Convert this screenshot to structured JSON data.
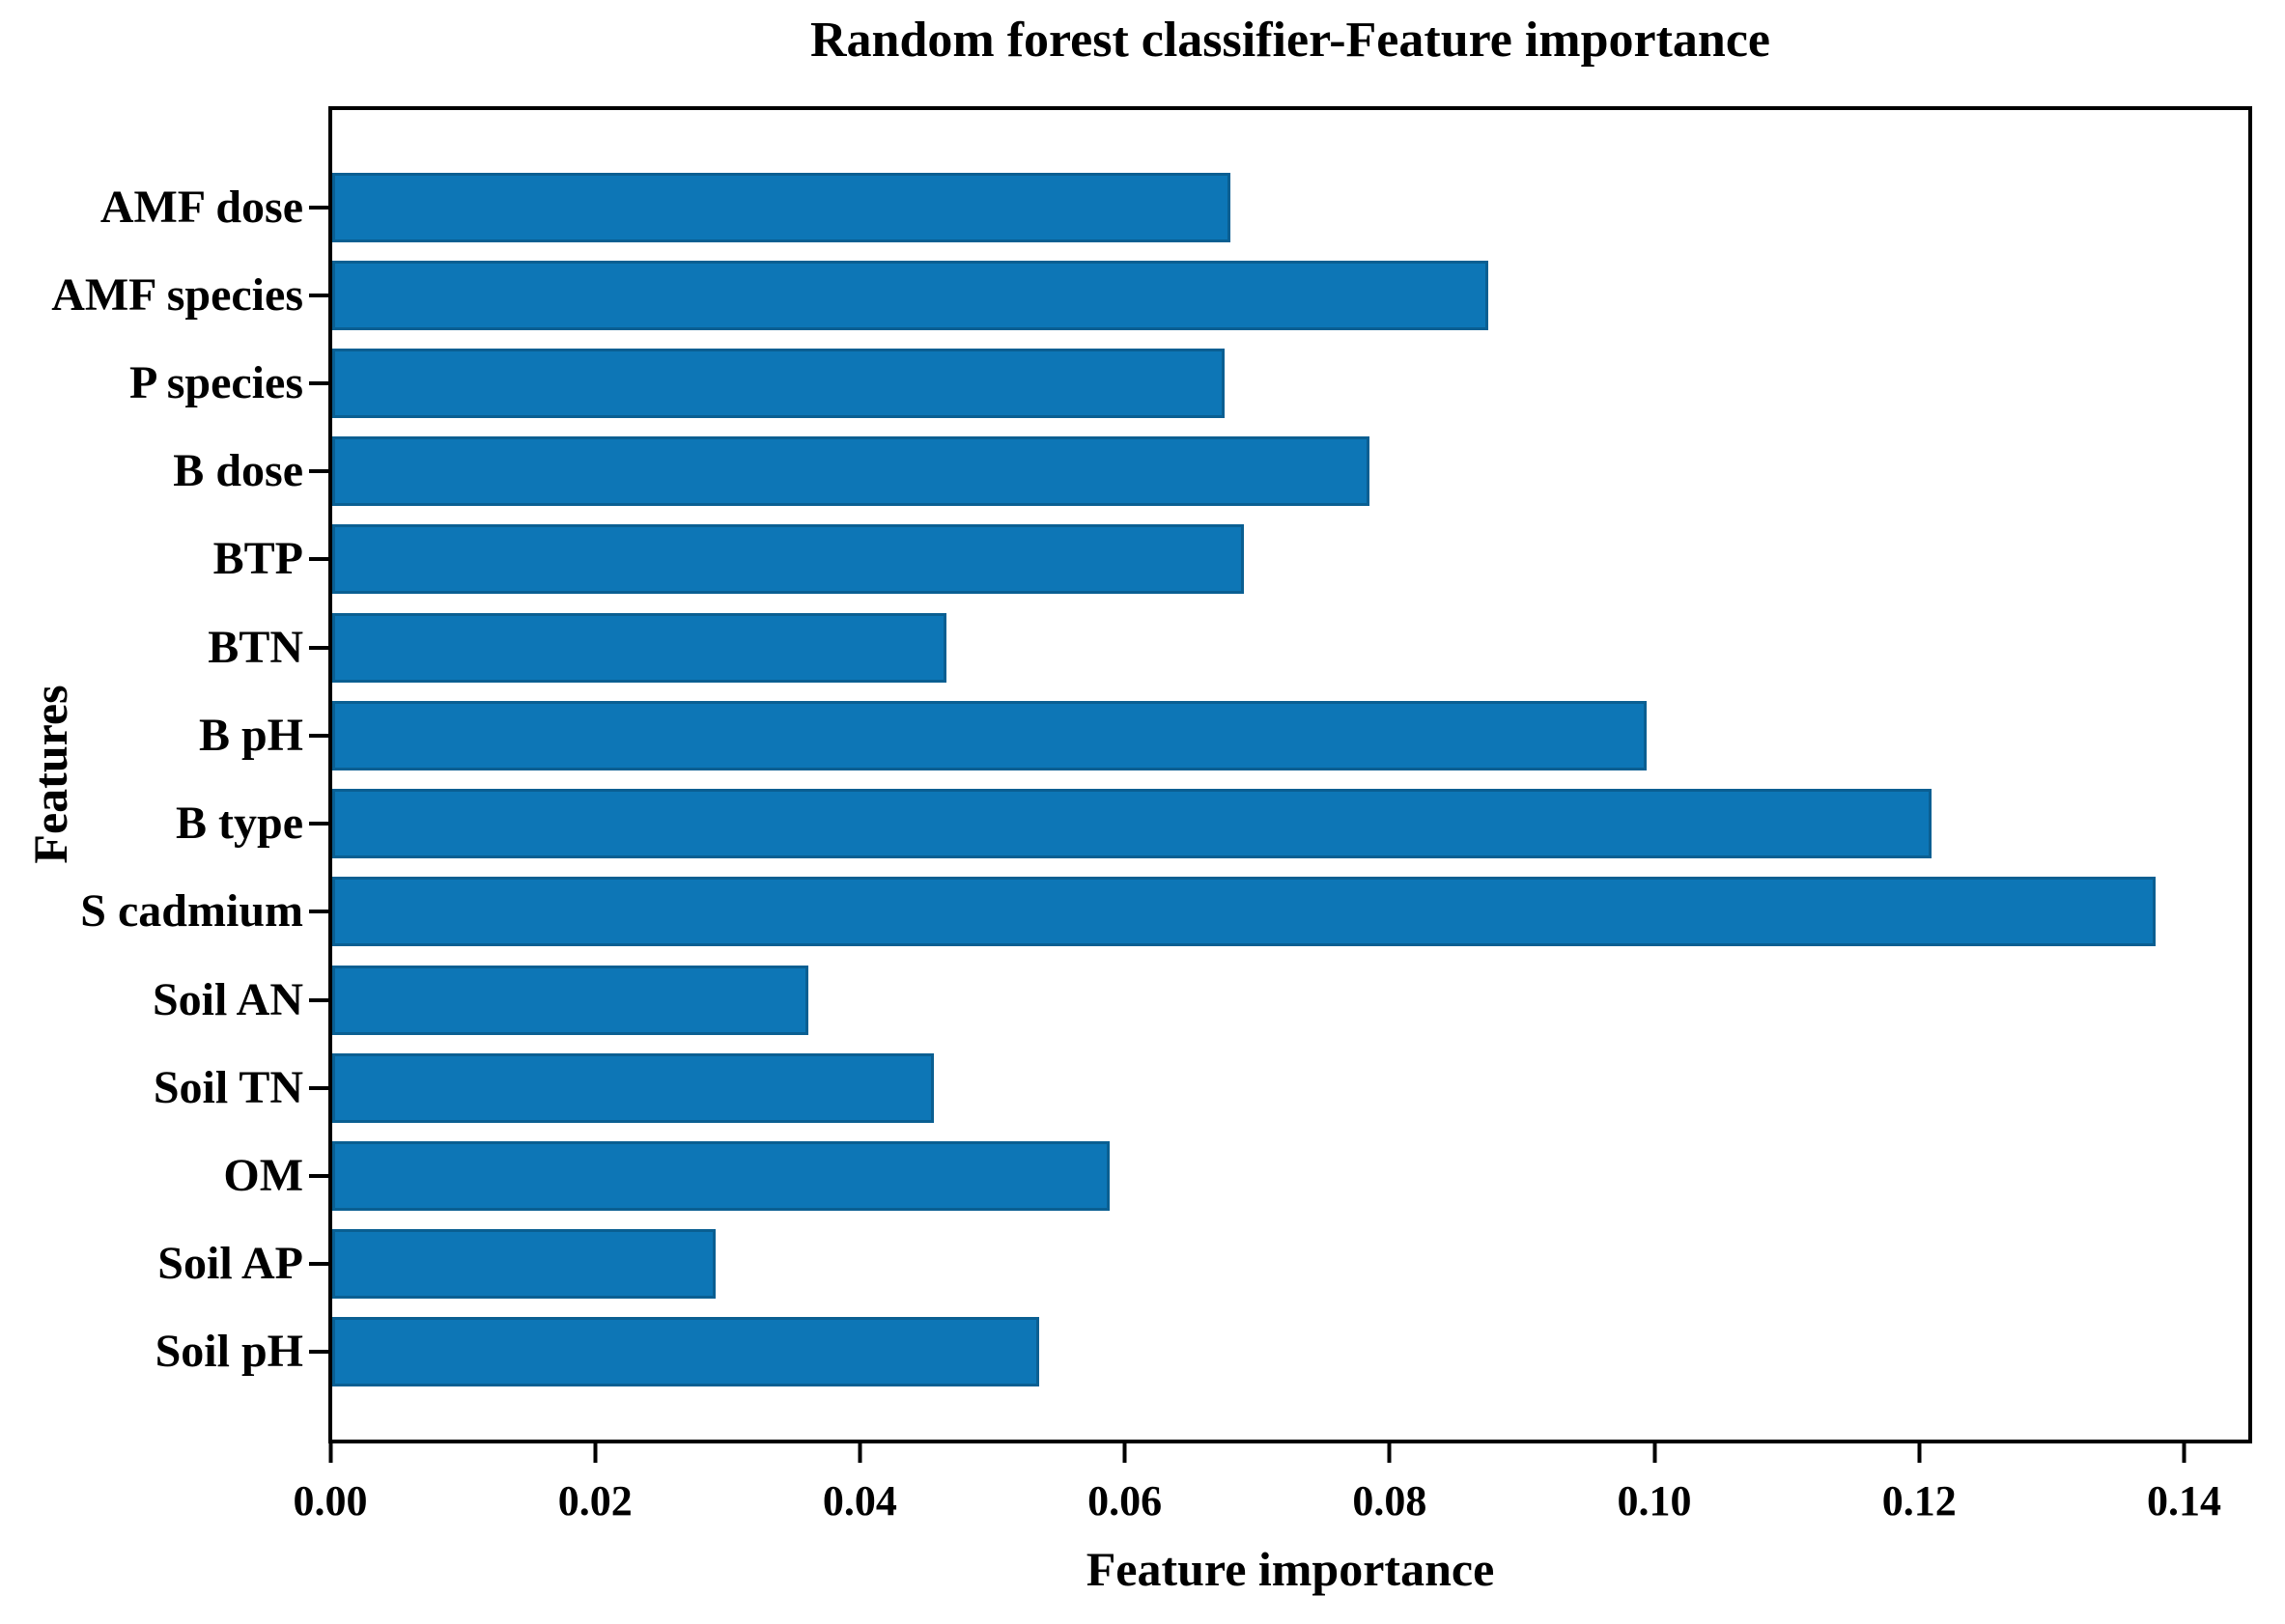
{
  "chart_data": {
    "type": "bar",
    "orientation": "horizontal",
    "title": "Random forest classifier-Feature importance",
    "xlabel": "Feature importance",
    "ylabel": "Features",
    "categories": [
      "AMF dose",
      "AMF species",
      "P species",
      "B dose",
      "BTP",
      "BTN",
      "B pH",
      "B type",
      "S cadmium",
      "Soil AN",
      "Soil TN",
      "OM",
      "Soil AP",
      "Soil pH"
    ],
    "values": [
      0.068,
      0.0875,
      0.0675,
      0.0785,
      0.069,
      0.0465,
      0.0995,
      0.121,
      0.138,
      0.036,
      0.0455,
      0.0588,
      0.029,
      0.0535
    ],
    "xlim": [
      0,
      0.145
    ],
    "xticks": [
      0.0,
      0.02,
      0.04,
      0.06,
      0.08,
      0.1,
      0.12,
      0.14
    ],
    "xtick_labels": [
      "0.00",
      "0.02",
      "0.04",
      "0.06",
      "0.08",
      "0.10",
      "0.12",
      "0.14"
    ],
    "bar_color": "#0d76b6",
    "bar_edge_color": "#0a5f92",
    "axis_color": "#000000",
    "grid": false,
    "legend": null
  }
}
